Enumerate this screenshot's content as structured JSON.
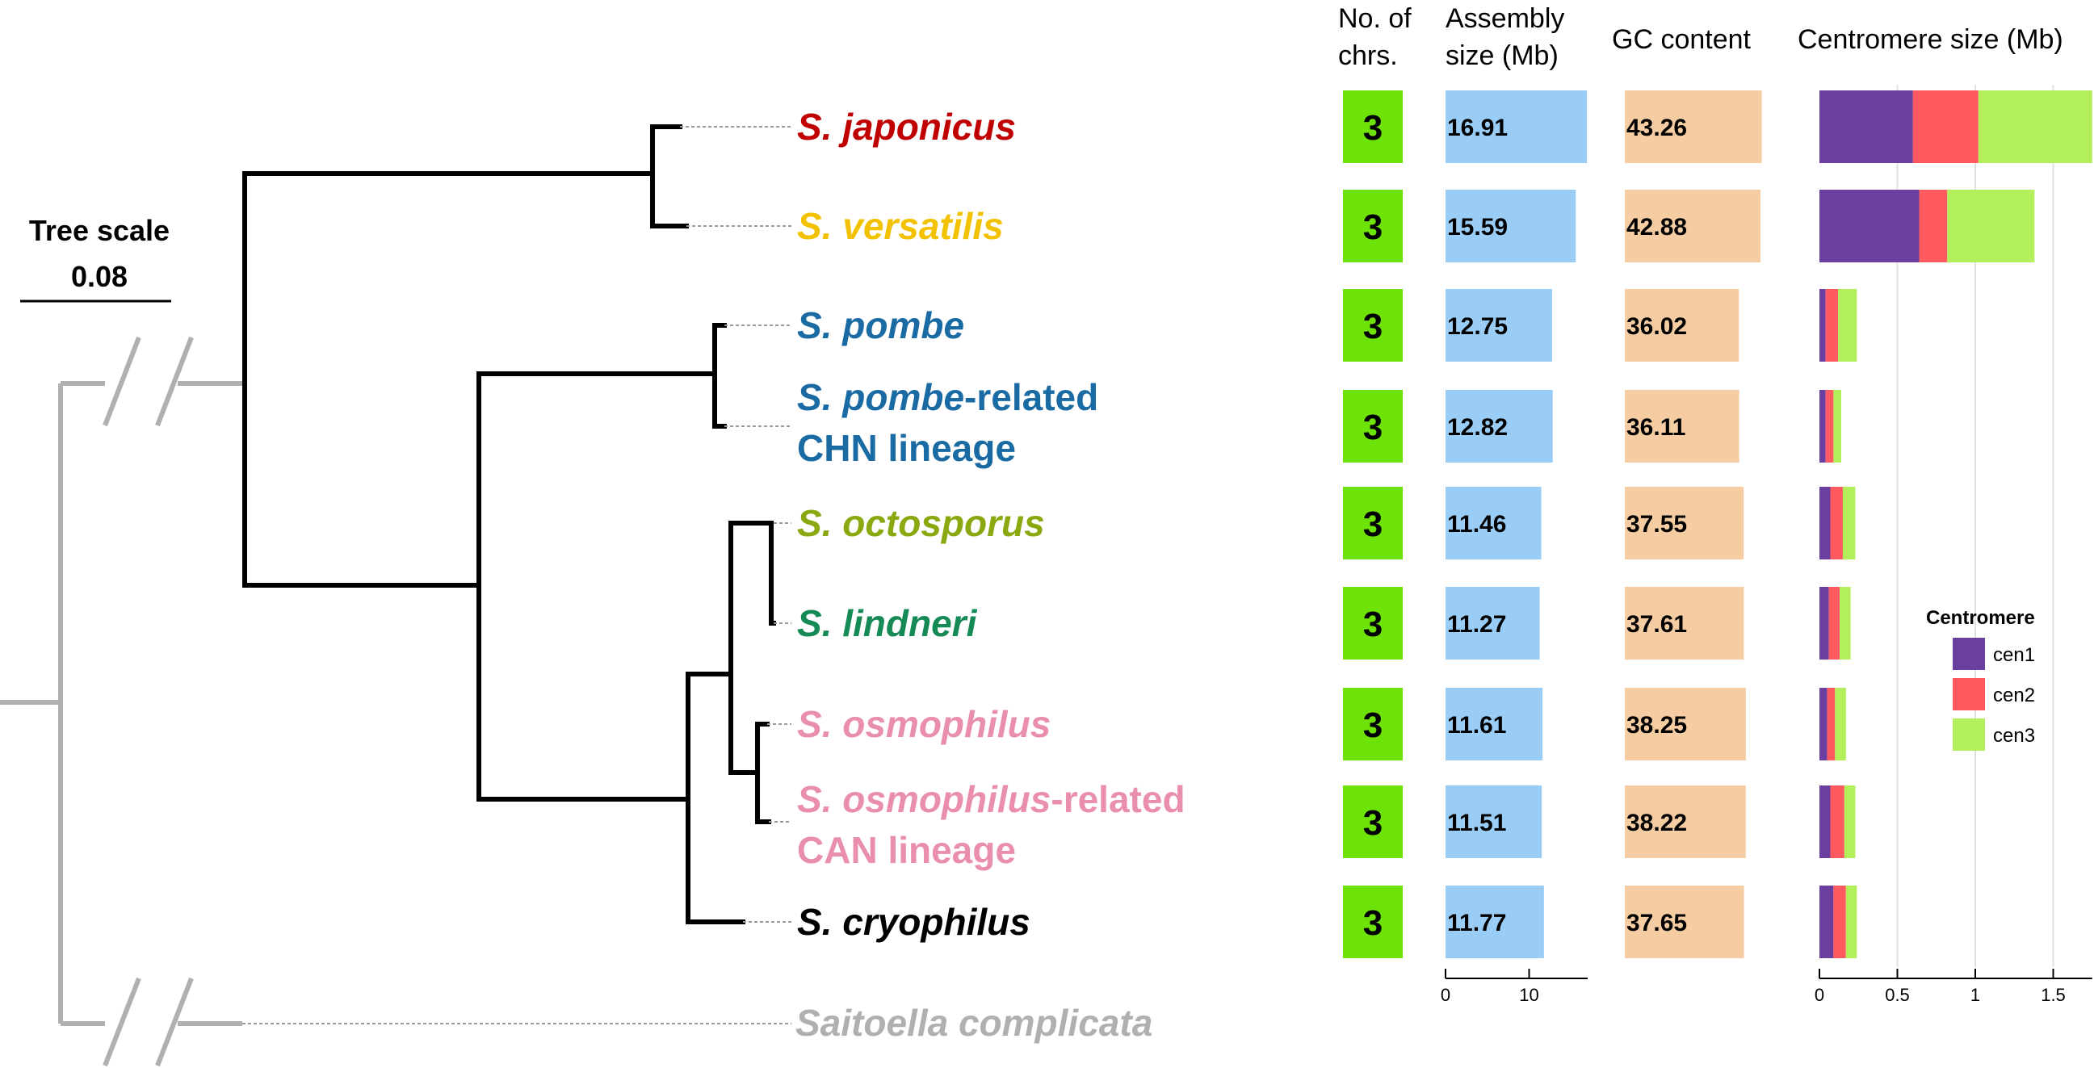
{
  "tree_scale": {
    "title": "Tree scale",
    "value": "0.08"
  },
  "headers": {
    "chrs": [
      "No. of",
      "chrs."
    ],
    "assembly": [
      "Assembly",
      "size (Mb)"
    ],
    "gc": "GC content",
    "cen": "Centromere size (Mb)"
  },
  "species": [
    {
      "name": [
        {
          "t": "S. japonicus",
          "i": true
        }
      ],
      "line2": "",
      "color": "#c00000",
      "chrs": "3",
      "assembly": "16.91",
      "gc": "43.26",
      "cen": [
        0.6,
        0.42,
        0.73
      ]
    },
    {
      "name": [
        {
          "t": "S. versatilis",
          "i": true
        }
      ],
      "line2": "",
      "color": "#f2c200",
      "chrs": "3",
      "assembly": "15.59",
      "gc": "42.88",
      "cen": [
        0.64,
        0.18,
        0.56
      ]
    },
    {
      "name": [
        {
          "t": "S. pombe",
          "i": true
        }
      ],
      "line2": "",
      "color": "#1a6aa3",
      "chrs": "3",
      "assembly": "12.75",
      "gc": "36.02",
      "cen": [
        0.04,
        0.08,
        0.12
      ]
    },
    {
      "name": [
        {
          "t": "S. pombe",
          "i": true
        },
        {
          "t": "-related",
          "i": false
        }
      ],
      "line2": "CHN lineage",
      "color": "#1a6aa3",
      "chrs": "3",
      "assembly": "12.82",
      "gc": "36.11",
      "cen": [
        0.04,
        0.05,
        0.05
      ]
    },
    {
      "name": [
        {
          "t": "S. octosporus",
          "i": true
        }
      ],
      "line2": "",
      "color": "#8aa80f",
      "chrs": "3",
      "assembly": "11.46",
      "gc": "37.55",
      "cen": [
        0.07,
        0.08,
        0.08
      ]
    },
    {
      "name": [
        {
          "t": "S. lindneri",
          "i": true
        }
      ],
      "line2": "",
      "color": "#168a55",
      "chrs": "3",
      "assembly": "11.27",
      "gc": "37.61",
      "cen": [
        0.06,
        0.07,
        0.07
      ]
    },
    {
      "name": [
        {
          "t": "S. osmophilus",
          "i": true
        }
      ],
      "line2": "",
      "color": "#e98fab",
      "chrs": "3",
      "assembly": "11.61",
      "gc": "38.25",
      "cen": [
        0.05,
        0.05,
        0.07
      ]
    },
    {
      "name": [
        {
          "t": "S. osmophilus",
          "i": true
        },
        {
          "t": "-related",
          "i": false
        }
      ],
      "line2": "CAN lineage",
      "color": "#e98fab",
      "chrs": "3",
      "assembly": "11.51",
      "gc": "38.22",
      "cen": [
        0.07,
        0.09,
        0.07
      ]
    },
    {
      "name": [
        {
          "t": "S. cryophilus",
          "i": true
        }
      ],
      "line2": "",
      "color": "#000000",
      "chrs": "3",
      "assembly": "11.77",
      "gc": "37.65",
      "cen": [
        0.09,
        0.08,
        0.07
      ]
    }
  ],
  "outgroup": {
    "name": "Saitoella complicata",
    "color": "#b0b0b0"
  },
  "legend": {
    "title": "Centromere",
    "items": [
      {
        "label": "cen1",
        "color": "#6b3fa0"
      },
      {
        "label": "cen2",
        "color": "#ff5a5f"
      },
      {
        "label": "cen3",
        "color": "#b2ef5a"
      }
    ]
  },
  "colors": {
    "chrs_box": "#6ee30a",
    "assembly_bar": "#9acdf5",
    "gc_bar": "#f6cda2",
    "gridline": "#e2e2e2"
  },
  "chart_data": [
    {
      "type": "bar",
      "title": "Assembly size (Mb)",
      "categories": [
        "S. japonicus",
        "S. versatilis",
        "S. pombe",
        "S. pombe-related CHN lineage",
        "S. octosporus",
        "S. lindneri",
        "S. osmophilus",
        "S. osmophilus-related CAN lineage",
        "S. cryophilus"
      ],
      "values": [
        16.91,
        15.59,
        12.75,
        12.82,
        11.46,
        11.27,
        11.61,
        11.51,
        11.77
      ],
      "xticks": [
        0,
        10
      ],
      "xlim": [
        0,
        17
      ]
    },
    {
      "type": "bar",
      "title": "GC content",
      "categories": [
        "S. japonicus",
        "S. versatilis",
        "S. pombe",
        "S. pombe-related CHN lineage",
        "S. octosporus",
        "S. lindneri",
        "S. osmophilus",
        "S. osmophilus-related CAN lineage",
        "S. cryophilus"
      ],
      "values": [
        43.26,
        42.88,
        36.02,
        36.11,
        37.55,
        37.61,
        38.25,
        38.22,
        37.65
      ]
    },
    {
      "type": "bar",
      "stacked": true,
      "title": "Centromere size (Mb)",
      "categories": [
        "S. japonicus",
        "S. versatilis",
        "S. pombe",
        "S. pombe-related CHN lineage",
        "S. octosporus",
        "S. lindneri",
        "S. osmophilus",
        "S. osmophilus-related CAN lineage",
        "S. cryophilus"
      ],
      "series": [
        {
          "name": "cen1",
          "values": [
            0.6,
            0.64,
            0.04,
            0.04,
            0.07,
            0.06,
            0.05,
            0.07,
            0.09
          ]
        },
        {
          "name": "cen2",
          "values": [
            0.42,
            0.18,
            0.08,
            0.05,
            0.08,
            0.07,
            0.05,
            0.09,
            0.08
          ]
        },
        {
          "name": "cen3",
          "values": [
            0.73,
            0.56,
            0.12,
            0.05,
            0.08,
            0.07,
            0.07,
            0.07,
            0.07
          ]
        }
      ],
      "xticks": [
        0,
        0.5,
        1,
        1.5
      ],
      "xlim": [
        0,
        1.75
      ],
      "grid": true,
      "legend_position": "right"
    }
  ]
}
